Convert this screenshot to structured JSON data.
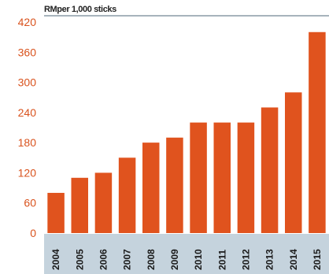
{
  "chart_data": {
    "type": "bar",
    "title": "",
    "unit_label": "RMper 1,000 sticks",
    "xlabel": "",
    "ylabel": "",
    "categories": [
      "2004",
      "2005",
      "2006",
      "2007",
      "2008",
      "2009",
      "2010",
      "2011",
      "2012",
      "2013",
      "2014",
      "2015"
    ],
    "values": [
      80,
      110,
      120,
      150,
      180,
      190,
      220,
      220,
      220,
      250,
      280,
      400
    ],
    "ylim": [
      0,
      420
    ],
    "yticks": [
      0,
      60,
      120,
      180,
      240,
      300,
      360,
      420
    ],
    "grid": false,
    "legend": "none",
    "colors": {
      "bar": "#e0531e",
      "tick_text": "#d9531e",
      "axis_band": "#c5d3dd",
      "header_line": "#8a9aa6"
    }
  }
}
